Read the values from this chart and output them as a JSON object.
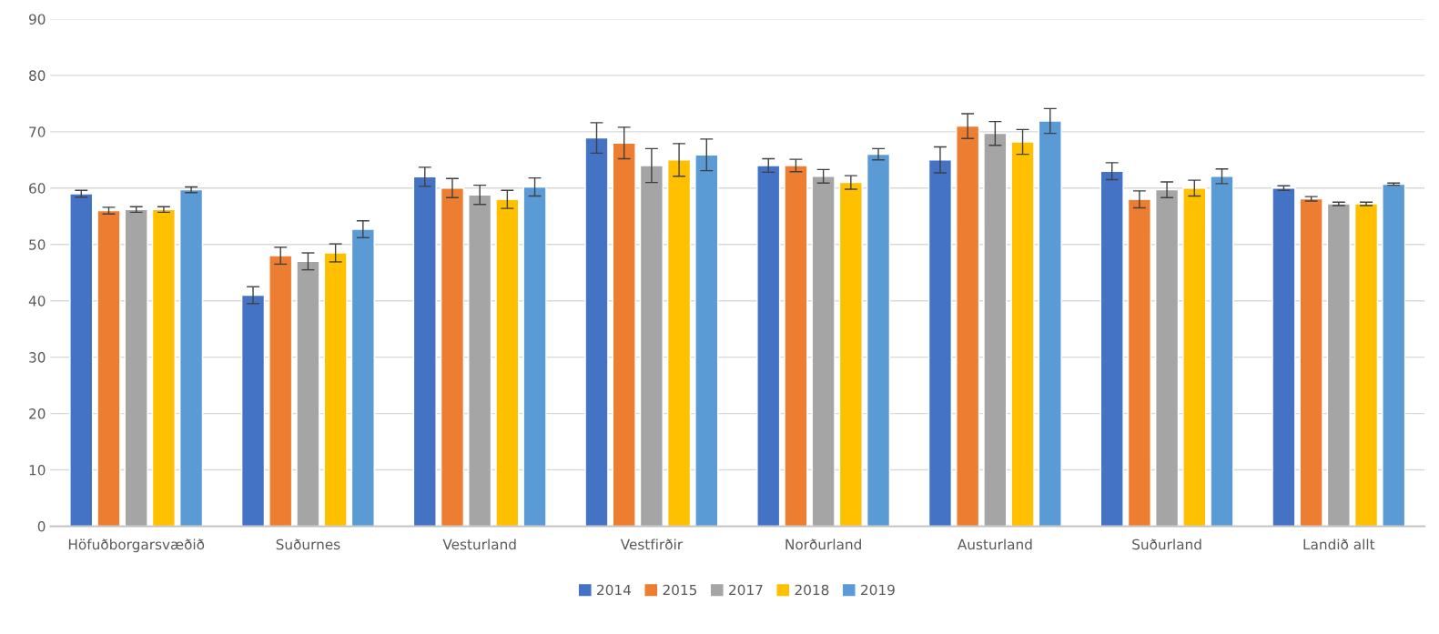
{
  "chart_data": {
    "type": "bar",
    "categories": [
      "Höfuðborgarsvæðið",
      "Suðurnes",
      "Vesturland",
      "Vestfirðir",
      "Norðurland",
      "Austurland",
      "Suðurland",
      "Landið allt"
    ],
    "series": [
      {
        "name": "2014",
        "color": "#4472c4",
        "values": [
          59,
          41,
          62,
          68.9,
          64,
          65,
          63,
          60
        ],
        "errors": [
          0.6,
          1.5,
          1.7,
          2.7,
          1.2,
          2.3,
          1.5,
          0.4
        ]
      },
      {
        "name": "2015",
        "color": "#ed7d31",
        "values": [
          56,
          48,
          60,
          68,
          64,
          71,
          58,
          58.1
        ],
        "errors": [
          0.6,
          1.5,
          1.7,
          2.8,
          1.1,
          2.2,
          1.5,
          0.4
        ]
      },
      {
        "name": "2017",
        "color": "#a5a5a5",
        "values": [
          56.2,
          47,
          58.8,
          64,
          62.1,
          69.7,
          59.7,
          57.2
        ],
        "errors": [
          0.5,
          1.5,
          1.7,
          3.0,
          1.2,
          2.1,
          1.4,
          0.3
        ]
      },
      {
        "name": "2018",
        "color": "#ffc000",
        "values": [
          56.2,
          48.5,
          58,
          65,
          61,
          68.2,
          60,
          57.2
        ],
        "errors": [
          0.5,
          1.6,
          1.6,
          2.9,
          1.2,
          2.2,
          1.4,
          0.3
        ]
      },
      {
        "name": "2019",
        "color": "#5b9bd5",
        "values": [
          59.7,
          52.7,
          60.2,
          65.9,
          66,
          71.9,
          62.1,
          60.7
        ],
        "errors": [
          0.5,
          1.5,
          1.6,
          2.8,
          1.0,
          2.2,
          1.3,
          0.2
        ]
      }
    ],
    "ylim": [
      0,
      90
    ],
    "yticks": [
      0,
      10,
      20,
      30,
      40,
      50,
      60,
      70,
      80,
      90
    ],
    "grid": "y",
    "legend": "bottom"
  }
}
